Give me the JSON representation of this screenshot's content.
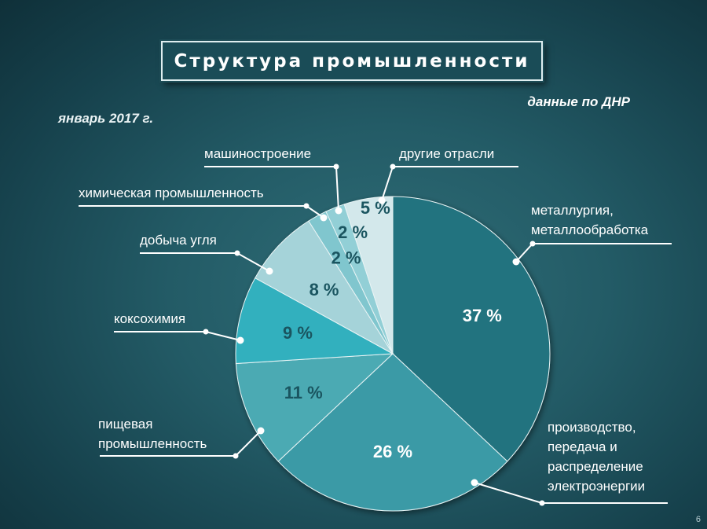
{
  "title": "Структура промышленности",
  "subtitle_date": "январь 2017 г.",
  "source_note": "данные по ДНР",
  "page_number": "6",
  "chart_data": {
    "type": "pie",
    "slices": [
      {
        "label_lines": [
          "металлургия,",
          "металлообработка"
        ],
        "value": 37,
        "value_label": "37 %",
        "color": "#24737f",
        "text_color": "#ffffff"
      },
      {
        "label_lines": [
          "производство,",
          "передача и",
          "распределение",
          "электроэнергии"
        ],
        "value": 26,
        "value_label": "26 %",
        "color": "#3a9aa6",
        "text_color": "#ffffff"
      },
      {
        "label_lines": [
          "пищевая",
          "промышленность"
        ],
        "value": 11,
        "value_label": "11 %",
        "color": "#4caab3",
        "text_color": "#1a5560"
      },
      {
        "label_lines": [
          "коксохимия"
        ],
        "value": 9,
        "value_label": "9 %",
        "color": "#31b0be",
        "text_color": "#1a5560"
      },
      {
        "label_lines": [
          "добыча угля"
        ],
        "value": 8,
        "value_label": "8 %",
        "color": "#a5d3d9",
        "text_color": "#1a5560"
      },
      {
        "label_lines": [
          "химическая промышленность"
        ],
        "value": 2,
        "value_label": "2 %",
        "color": "#80c6ce",
        "text_color": "#1a5560"
      },
      {
        "label_lines": [
          "машиностроение"
        ],
        "value": 2,
        "value_label": "2 %",
        "color": "#92cfd6",
        "text_color": "#1a5560"
      },
      {
        "label_lines": [
          "другие отрасли"
        ],
        "value": 5,
        "value_label": "5 %",
        "color": "#d3e8eb",
        "text_color": "#1a5560"
      }
    ]
  }
}
